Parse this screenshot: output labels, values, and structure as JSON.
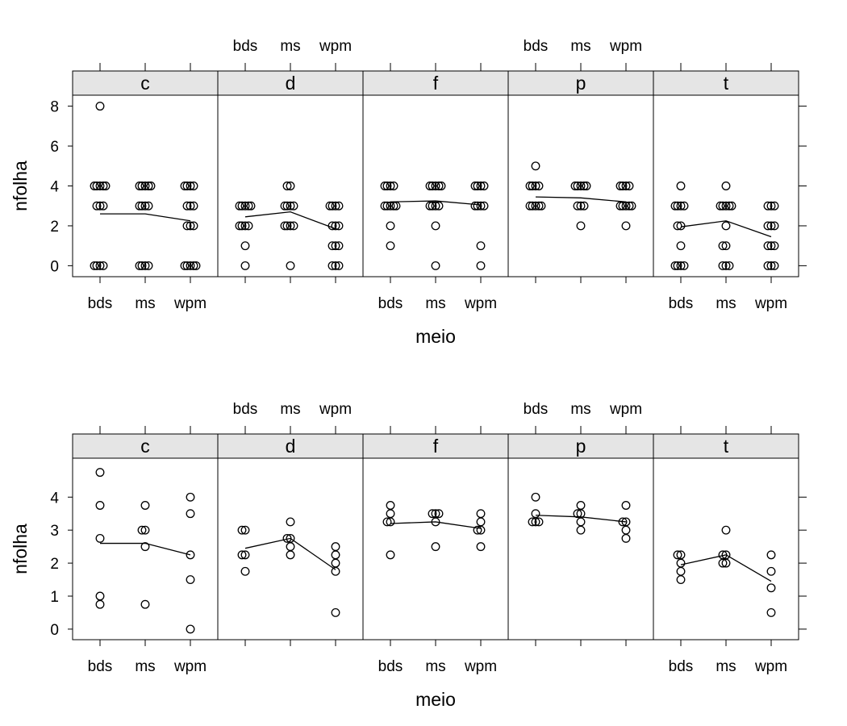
{
  "colors": {
    "strip_fill": "#e5e5e5",
    "frame": "#000000",
    "points": "#000000",
    "lines": "#000000",
    "background": "#ffffff"
  },
  "chart_data": [
    {
      "type": "scatter",
      "panel_labels": [
        "c",
        "d",
        "f",
        "p",
        "t"
      ],
      "categories": [
        "bds",
        "ms",
        "wpm"
      ],
      "xlabel": "meio",
      "ylabel": "nfolha",
      "yticks": [
        0,
        2,
        4,
        6,
        8
      ],
      "ylim": [
        -0.55,
        8.55
      ],
      "top_axis_labels_on": [
        "d",
        "p"
      ],
      "bottom_axis_labels_on": [
        "c",
        "f",
        "t"
      ],
      "grid": false,
      "panels": [
        {
          "label": "c",
          "points": {
            "bds": [
              8,
              4,
              4,
              4,
              4,
              4,
              3,
              3,
              3,
              0,
              0,
              0,
              0
            ],
            "ms": [
              4,
              4,
              4,
              4,
              4,
              3,
              3,
              3,
              3,
              0,
              0,
              0,
              0
            ],
            "wpm": [
              4,
              4,
              4,
              4,
              3,
              3,
              3,
              2,
              2,
              2,
              0,
              0,
              0,
              0,
              0
            ]
          },
          "line": [
            2.6,
            2.6,
            2.25
          ]
        },
        {
          "label": "d",
          "points": {
            "bds": [
              3,
              3,
              3,
              3,
              3,
              2,
              2,
              2,
              2,
              1,
              0
            ],
            "ms": [
              4,
              4,
              3,
              3,
              3,
              3,
              2,
              2,
              2,
              2,
              0
            ],
            "wpm": [
              3,
              3,
              3,
              3,
              2,
              2,
              2,
              1,
              1,
              1,
              0,
              0,
              0
            ]
          },
          "line": [
            2.45,
            2.7,
            1.85
          ]
        },
        {
          "label": "f",
          "points": {
            "bds": [
              4,
              4,
              4,
              4,
              3,
              3,
              3,
              3,
              3,
              2,
              1
            ],
            "ms": [
              4,
              4,
              4,
              4,
              4,
              3,
              3,
              3,
              3,
              2,
              0
            ],
            "wpm": [
              4,
              4,
              4,
              4,
              3,
              3,
              3,
              3,
              1,
              0
            ]
          },
          "line": [
            3.2,
            3.25,
            3.05
          ]
        },
        {
          "label": "p",
          "points": {
            "bds": [
              5,
              4,
              4,
              4,
              4,
              3,
              3,
              3,
              3,
              3
            ],
            "ms": [
              4,
              4,
              4,
              4,
              4,
              3,
              3,
              3,
              2
            ],
            "wpm": [
              4,
              4,
              4,
              4,
              3,
              3,
              3,
              3,
              3,
              2
            ]
          },
          "line": [
            3.45,
            3.4,
            3.2
          ]
        },
        {
          "label": "t",
          "points": {
            "bds": [
              4,
              3,
              3,
              3,
              3,
              2,
              2,
              1,
              0,
              0,
              0,
              0
            ],
            "ms": [
              4,
              3,
              3,
              3,
              3,
              3,
              2,
              1,
              1,
              0,
              0,
              0
            ],
            "wpm": [
              3,
              3,
              3,
              2,
              2,
              2,
              1,
              1,
              1,
              0,
              0,
              0
            ]
          },
          "line": [
            1.95,
            2.25,
            1.45
          ]
        }
      ]
    },
    {
      "type": "scatter",
      "panel_labels": [
        "c",
        "d",
        "f",
        "p",
        "t"
      ],
      "categories": [
        "bds",
        "ms",
        "wpm"
      ],
      "xlabel": "meio",
      "ylabel": "nfolha",
      "yticks": [
        0,
        1,
        2,
        3,
        4
      ],
      "ylim": [
        -0.32,
        5.18
      ],
      "top_axis_labels_on": [
        "d",
        "p"
      ],
      "bottom_axis_labels_on": [
        "c",
        "f",
        "t"
      ],
      "grid": false,
      "panels": [
        {
          "label": "c",
          "points": {
            "bds": [
              4.75,
              3.75,
              2.75,
              1.0,
              0.75
            ],
            "ms": [
              3.75,
              3.0,
              3.0,
              2.5,
              0.75
            ],
            "wpm": [
              4.0,
              3.5,
              2.25,
              1.5,
              0.0
            ]
          },
          "line": [
            2.6,
            2.6,
            2.25
          ]
        },
        {
          "label": "d",
          "points": {
            "bds": [
              3.0,
              3.0,
              2.25,
              2.25,
              1.75
            ],
            "ms": [
              3.25,
              2.75,
              2.75,
              2.5,
              2.25
            ],
            "wpm": [
              2.5,
              2.25,
              2.0,
              1.75,
              0.5
            ]
          },
          "line": [
            2.45,
            2.75,
            1.8
          ]
        },
        {
          "label": "f",
          "points": {
            "bds": [
              3.75,
              3.5,
              3.25,
              3.25,
              2.25
            ],
            "ms": [
              3.5,
              3.5,
              3.5,
              3.25,
              2.5
            ],
            "wpm": [
              3.5,
              3.25,
              3.0,
              3.0,
              2.5
            ]
          },
          "line": [
            3.2,
            3.25,
            3.05
          ]
        },
        {
          "label": "p",
          "points": {
            "bds": [
              4.0,
              3.5,
              3.25,
              3.25,
              3.25
            ],
            "ms": [
              3.75,
              3.5,
              3.5,
              3.25,
              3.0
            ],
            "wpm": [
              3.75,
              3.25,
              3.25,
              3.0,
              2.75
            ]
          },
          "line": [
            3.45,
            3.4,
            3.25
          ]
        },
        {
          "label": "t",
          "points": {
            "bds": [
              2.25,
              2.25,
              2.0,
              1.75,
              1.5
            ],
            "ms": [
              3.0,
              2.25,
              2.25,
              2.0,
              2.0
            ],
            "wpm": [
              2.25,
              1.75,
              1.25,
              0.5
            ]
          },
          "line": [
            1.95,
            2.25,
            1.45
          ]
        }
      ]
    }
  ]
}
